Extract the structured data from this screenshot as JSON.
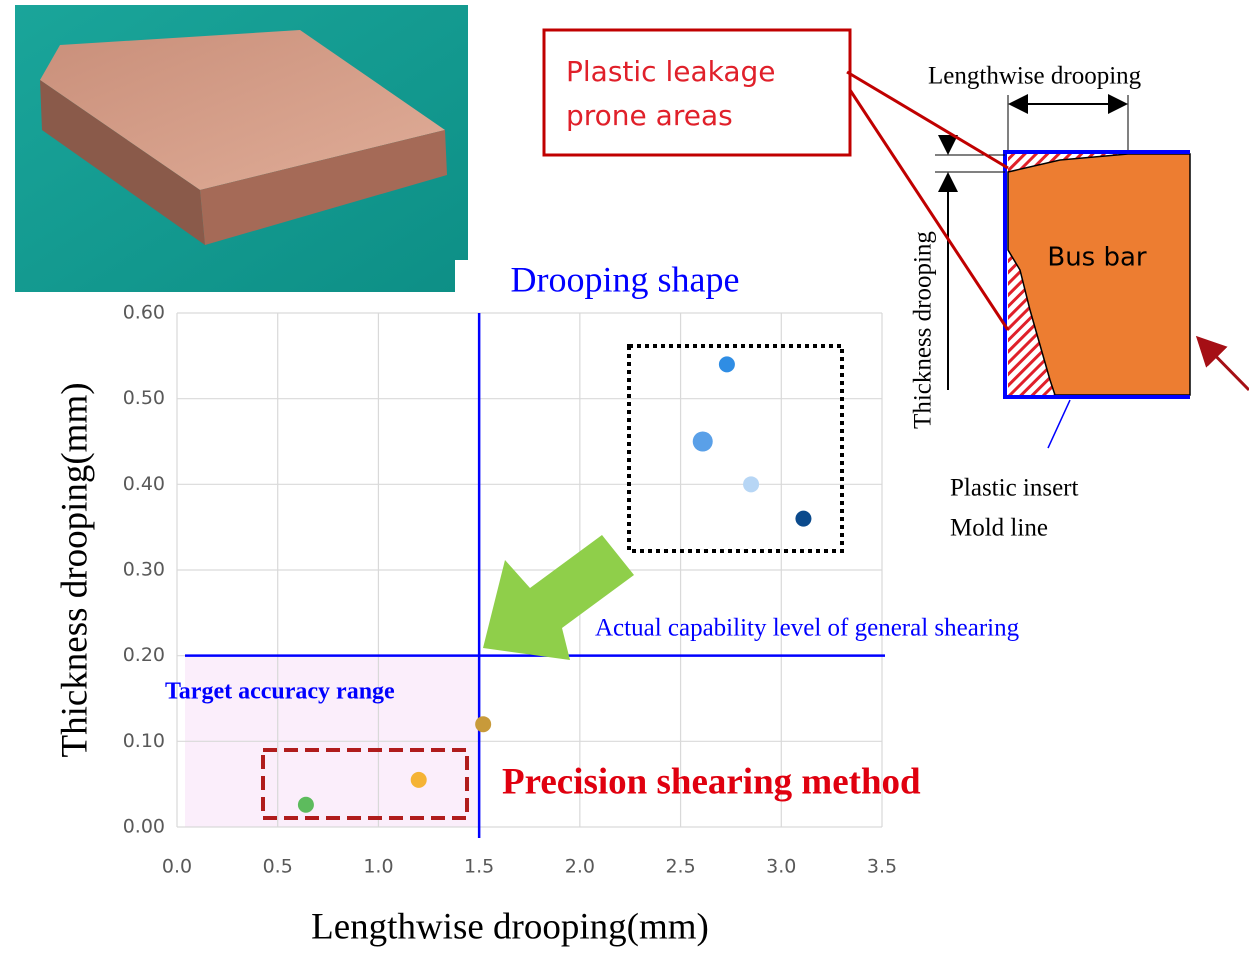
{
  "chart_data": {
    "type": "scatter",
    "title": "Drooping shape",
    "x_label": "Lengthwise drooping(mm)",
    "y_label": "Thickness drooping(mm)",
    "x": [
      2.73,
      2.61,
      2.85,
      3.11,
      1.52,
      1.2,
      0.64
    ],
    "values": [
      0.54,
      0.45,
      0.4,
      0.36,
      0.12,
      0.055,
      0.026
    ],
    "colors": [
      "#2f8de4",
      "#5aa0e8",
      "#b7d6f5",
      "#0b4a8c",
      "#c89a3a",
      "#f5b335",
      "#5dbb5d"
    ],
    "xlim": [
      0,
      3.5
    ],
    "xticks": [
      {
        "value": 0,
        "label": "0.0"
      },
      0.5,
      {
        "value": 1,
        "label": "1.0"
      },
      1.5,
      {
        "value": 2,
        "label": "2.0"
      },
      2.5,
      {
        "value": 3,
        "label": "3.0"
      },
      3.5
    ],
    "ylim": [
      0,
      0.6
    ],
    "yticks": [
      {
        "value": 0,
        "label": "0.00"
      },
      {
        "value": 0.1,
        "label": "0.10"
      },
      {
        "value": 0.2,
        "label": "0.20"
      },
      {
        "value": 0.3,
        "label": "0.30"
      },
      {
        "value": 0.4,
        "label": "0.40"
      },
      {
        "value": 0.5,
        "label": "0.50"
      },
      {
        "value": 0.6,
        "label": "0.60"
      }
    ],
    "grid": true,
    "reference_lines": {
      "x": 1.5,
      "y": 0.2,
      "color": "#0000ff"
    },
    "region_color": "#fbeefb",
    "annotations": {
      "general_shearing": "Actual capability level of general shearing",
      "target_range": "Target accuracy range",
      "precision_method": "Precision shearing method"
    }
  },
  "diagram": {
    "leakage_label": [
      "Plastic leakage",
      "prone areas"
    ],
    "lengthwise": "Lengthwise drooping",
    "thickness": "Thickness drooping",
    "bus_bar": "Bus bar",
    "mold_line": [
      "Plastic insert",
      "Mold line"
    ]
  }
}
